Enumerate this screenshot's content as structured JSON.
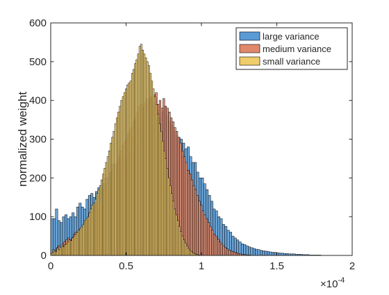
{
  "chart_data": {
    "type": "bar",
    "title": "",
    "xlabel": "",
    "ylabel": "normalized weight",
    "x_exponent_label": "×10",
    "x_exponent_power": "-4",
    "x_scale": 0.0001,
    "xlim": [
      0,
      2
    ],
    "ylim": [
      0,
      600
    ],
    "xticks": [
      0,
      0.5,
      1,
      1.5,
      2
    ],
    "xtick_labels": [
      "0",
      "0.5",
      "1",
      "1.5",
      "2"
    ],
    "yticks": [
      0,
      100,
      200,
      300,
      400,
      500,
      600
    ],
    "ytick_labels": [
      "0",
      "100",
      "200",
      "300",
      "400",
      "500",
      "600"
    ],
    "grid": false,
    "legend_location": "top-right",
    "series": [
      {
        "name": "large variance",
        "color": "#5b9bd5",
        "bin_start": 0.0,
        "bin_width": 0.0156,
        "values": [
          95,
          95,
          120,
          90,
          85,
          100,
          105,
          95,
          100,
          110,
          100,
          125,
          135,
          125,
          120,
          145,
          155,
          160,
          150,
          165,
          175,
          180,
          185,
          200,
          200,
          215,
          235,
          210,
          235,
          240,
          255,
          245,
          255,
          265,
          300,
          280,
          290,
          310,
          330,
          340,
          350,
          385,
          405,
          390,
          405,
          375,
          355,
          370,
          385,
          360,
          345,
          335,
          320,
          310,
          305,
          300,
          290,
          275,
          280,
          255,
          240,
          240,
          215,
          200,
          200,
          185,
          170,
          155,
          140,
          120,
          115,
          100,
          95,
          80,
          75,
          65,
          60,
          50,
          45,
          40,
          35,
          30,
          28,
          25,
          22,
          20,
          18,
          16,
          15,
          13,
          12,
          11,
          10,
          9,
          8,
          8,
          7,
          6,
          6,
          5,
          5,
          4,
          4,
          4,
          3,
          3,
          3,
          2,
          2,
          2,
          1,
          1,
          1,
          1,
          1,
          0,
          0,
          0,
          0,
          0,
          0,
          0,
          0,
          0,
          0,
          0,
          0,
          0
        ]
      },
      {
        "name": "medium variance",
        "color": "#e0896a",
        "bin_start": 0.0,
        "bin_width": 0.0124,
        "values": [
          5,
          15,
          10,
          20,
          25,
          15,
          30,
          35,
          40,
          45,
          40,
          45,
          55,
          60,
          60,
          65,
          70,
          75,
          85,
          90,
          100,
          105,
          110,
          120,
          130,
          135,
          140,
          160,
          170,
          180,
          185,
          195,
          215,
          220,
          235,
          240,
          255,
          270,
          285,
          290,
          300,
          315,
          325,
          330,
          345,
          355,
          370,
          385,
          390,
          380,
          395,
          405,
          400,
          410,
          395,
          415,
          420,
          390,
          400,
          380,
          405,
          385,
          380,
          370,
          355,
          345,
          330,
          320,
          305,
          290,
          270,
          255,
          240,
          220,
          210,
          195,
          180,
          170,
          155,
          140,
          130,
          115,
          105,
          95,
          85,
          75,
          65,
          55,
          50,
          42,
          35,
          30,
          25,
          20,
          17,
          14,
          12,
          10,
          8,
          6,
          5,
          4,
          3,
          2,
          2,
          1,
          1,
          0
        ]
      },
      {
        "name": "small variance",
        "color": "#f0cc6a",
        "bin_start": 0.0,
        "bin_width": 0.0101,
        "values": [
          5,
          8,
          12,
          10,
          18,
          15,
          20,
          25,
          22,
          28,
          30,
          35,
          40,
          38,
          45,
          50,
          55,
          60,
          65,
          70,
          75,
          80,
          90,
          95,
          100,
          110,
          120,
          130,
          135,
          145,
          160,
          170,
          180,
          195,
          210,
          225,
          240,
          255,
          270,
          290,
          305,
          320,
          340,
          355,
          370,
          385,
          400,
          410,
          420,
          430,
          440,
          445,
          450,
          470,
          480,
          495,
          505,
          520,
          540,
          545,
          530,
          520,
          510,
          500,
          490,
          470,
          450,
          430,
          410,
          390,
          365,
          340,
          320,
          295,
          270,
          250,
          225,
          200,
          180,
          160,
          140,
          120,
          105,
          90,
          75,
          62,
          50,
          40,
          32,
          25,
          18,
          14,
          10,
          7,
          5,
          3,
          2,
          1,
          0
        ]
      }
    ]
  }
}
